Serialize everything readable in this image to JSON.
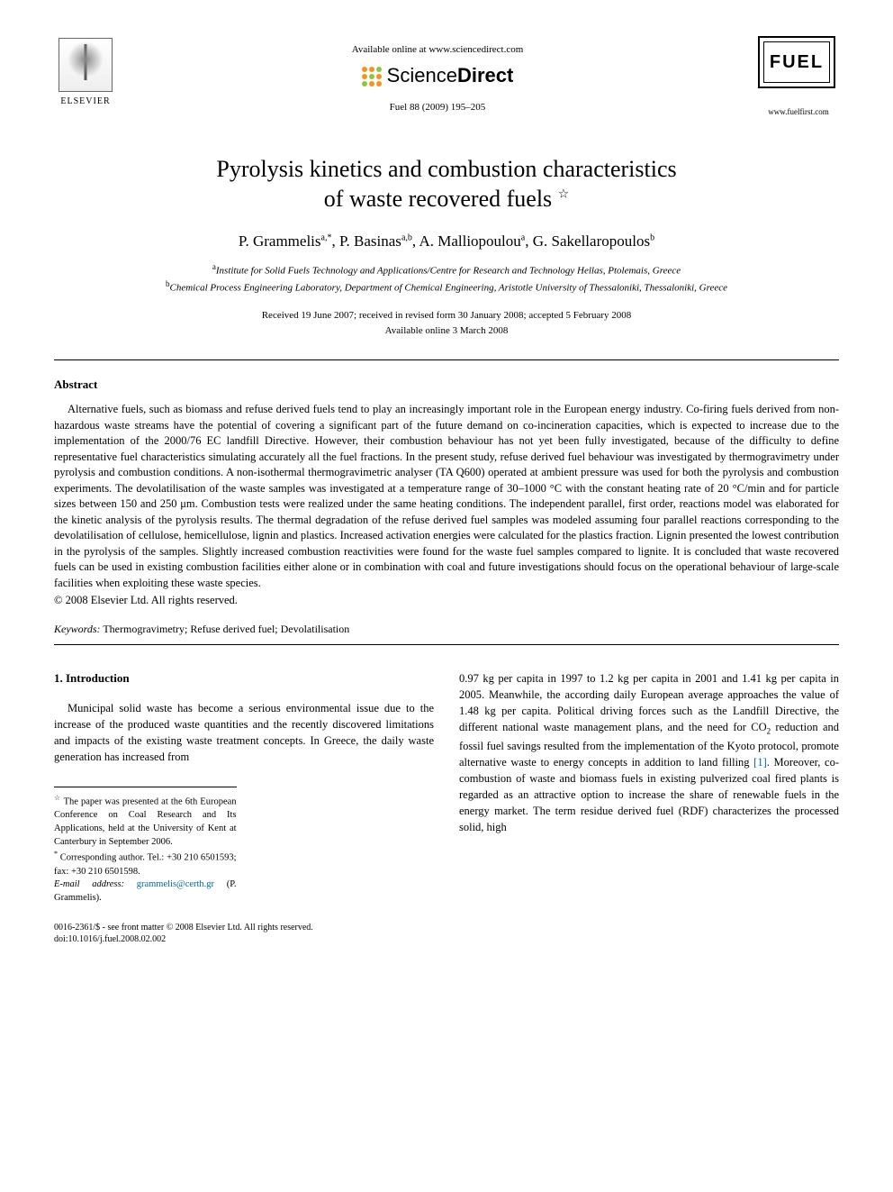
{
  "header": {
    "elsevier_label": "ELSEVIER",
    "available_text": "Available online at www.sciencedirect.com",
    "sd_text_light": "Science",
    "sd_text_bold": "Direct",
    "sd_dot_colors": [
      "#f7941e",
      "#f7941e",
      "#8dc63f",
      "#f7941e",
      "#8dc63f",
      "#f7941e",
      "#8dc63f",
      "#f7941e",
      "#f7941e"
    ],
    "journal_ref": "Fuel 88 (2009) 195–205",
    "fuel_label": "FUEL",
    "fuel_url": "www.fuelfirst.com"
  },
  "title": {
    "line1": "Pyrolysis kinetics and combustion characteristics",
    "line2": "of waste recovered fuels",
    "star": "☆"
  },
  "authors": {
    "a1_name": "P. Grammelis",
    "a1_sup": "a,*",
    "a2_name": "P. Basinas",
    "a2_sup": "a,b",
    "a3_name": "A. Malliopoulou",
    "a3_sup": "a",
    "a4_name": "G. Sakellaropoulos",
    "a4_sup": "b"
  },
  "affiliations": {
    "a_sup": "a",
    "a_text": "Institute for Solid Fuels Technology and Applications/Centre for Research and Technology Hellas, Ptolemais, Greece",
    "b_sup": "b",
    "b_text": "Chemical Process Engineering Laboratory, Department of Chemical Engineering, Aristotle University of Thessaloniki, Thessaloniki, Greece"
  },
  "dates": {
    "line1": "Received 19 June 2007; received in revised form 30 January 2008; accepted 5 February 2008",
    "line2": "Available online 3 March 2008"
  },
  "abstract": {
    "label": "Abstract",
    "text": "Alternative fuels, such as biomass and refuse derived fuels tend to play an increasingly important role in the European energy industry. Co-firing fuels derived from non-hazardous waste streams have the potential of covering a significant part of the future demand on co-incineration capacities, which is expected to increase due to the implementation of the 2000/76 EC landfill Directive. However, their combustion behaviour has not yet been fully investigated, because of the difficulty to define representative fuel characteristics simulating accurately all the fuel fractions. In the present study, refuse derived fuel behaviour was investigated by thermogravimetry under pyrolysis and combustion conditions. A non-isothermal thermogravimetric analyser (TA Q600) operated at ambient pressure was used for both the pyrolysis and combustion experiments. The devolatilisation of the waste samples was investigated at a temperature range of 30–1000 °C with the constant heating rate of 20 °C/min and for particle sizes between 150 and 250 μm. Combustion tests were realized under the same heating conditions. The independent parallel, first order, reactions model was elaborated for the kinetic analysis of the pyrolysis results. The thermal degradation of the refuse derived fuel samples was modeled assuming four parallel reactions corresponding to the devolatilisation of cellulose, hemicellulose, lignin and plastics. Increased activation energies were calculated for the plastics fraction. Lignin presented the lowest contribution in the pyrolysis of the samples. Slightly increased combustion reactivities were found for the waste fuel samples compared to lignite. It is concluded that waste recovered fuels can be used in existing combustion facilities either alone or in combination with coal and future investigations should focus on the operational behaviour of large-scale facilities when exploiting these waste species.",
    "copyright": "© 2008 Elsevier Ltd. All rights reserved."
  },
  "keywords": {
    "label": "Keywords:",
    "text": " Thermogravimetry; Refuse derived fuel; Devolatilisation"
  },
  "section1": {
    "heading": "1. Introduction",
    "col1": "Municipal solid waste has become a serious environmental issue due to the increase of the produced waste quantities and the recently discovered limitations and impacts of the existing waste treatment concepts. In Greece, the daily waste generation has increased from",
    "col2_a": "0.97 kg per capita in 1997 to 1.2 kg per capita in 2001 and 1.41 kg per capita in 2005. Meanwhile, the according daily European average approaches the value of 1.48 kg per capita. Political driving forces such as the Landfill Directive, the different national waste management plans, and the need for CO",
    "col2_sub": "2",
    "col2_b": " reduction and fossil fuel savings resulted from the implementation of the Kyoto protocol, promote alternative waste to energy concepts in addition to land filling ",
    "col2_ref": "[1]",
    "col2_c": ". Moreover, co-combustion of waste and biomass fuels in existing pulverized coal fired plants is regarded as an attractive option to increase the share of renewable fuels in the energy market. The term residue derived fuel (RDF) characterizes the processed solid, high"
  },
  "footnotes": {
    "star": "☆",
    "star_text": " The paper was presented at the 6th European Conference on Coal Research and Its Applications, held at the University of Kent at Canterbury in September 2006.",
    "corr_mark": "*",
    "corr_text": " Corresponding author. Tel.: +30 210 6501593; fax: +30 210 6501598.",
    "email_label": "E-mail address:",
    "email": "grammelis@certh.gr",
    "email_person": " (P. Grammelis)."
  },
  "footer": {
    "issn_line": "0016-2361/$ - see front matter © 2008 Elsevier Ltd. All rights reserved.",
    "doi_line": "doi:10.1016/j.fuel.2008.02.002"
  }
}
